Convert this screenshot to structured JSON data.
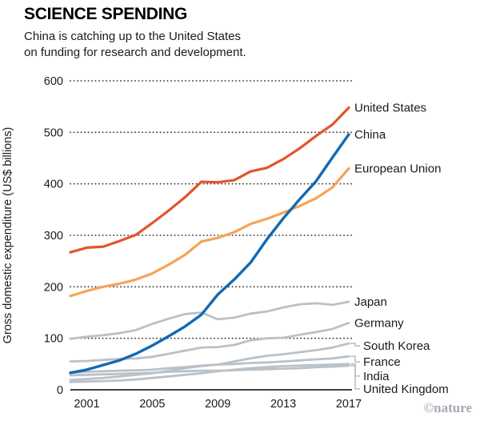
{
  "header": {
    "title": "SCIENCE SPENDING",
    "subtitle_line1": "China is catching up to the United States",
    "subtitle_line2": "on funding for research and development."
  },
  "footer": {
    "credit": "©nature"
  },
  "colors": {
    "united_states": "#e4542b",
    "china": "#1269b2",
    "european_union": "#f5a455",
    "gray_series": "#b9c1c9",
    "axis": "#000000",
    "grid": "#333333",
    "text": "#1a1a1a",
    "credit": "#a3abb2"
  },
  "chart_data": {
    "type": "line",
    "title": "SCIENCE SPENDING",
    "subtitle": "China is catching up to the United States on funding for research and development.",
    "xlabel": "",
    "ylabel": "Gross domestic expenditure (US$ billions)",
    "ylim": [
      0,
      600
    ],
    "y_ticks": [
      0,
      100,
      200,
      300,
      400,
      500,
      600
    ],
    "x_ticks": [
      2001,
      2005,
      2009,
      2013,
      2017
    ],
    "grid": "horizontal-dotted",
    "legend_position": "right-of-line-ends",
    "x": [
      2000,
      2001,
      2002,
      2003,
      2004,
      2005,
      2006,
      2007,
      2008,
      2009,
      2010,
      2011,
      2012,
      2013,
      2014,
      2015,
      2016,
      2017
    ],
    "series": [
      {
        "name": "United States",
        "color": "#e4542b",
        "width": 3.2,
        "label_dy": 0,
        "values": [
          267,
          276,
          278,
          289,
          301,
          324,
          348,
          374,
          404,
          403,
          407,
          424,
          431,
          448,
          469,
          493,
          515,
          548
        ]
      },
      {
        "name": "China",
        "color": "#1269b2",
        "width": 3.4,
        "label_dy": 0,
        "values": [
          33,
          39,
          48,
          57,
          70,
          86,
          104,
          123,
          146,
          185,
          214,
          247,
          292,
          333,
          370,
          405,
          451,
          496
        ]
      },
      {
        "name": "European Union",
        "color": "#f5a455",
        "width": 3.2,
        "label_dy": 0,
        "values": [
          182,
          192,
          200,
          206,
          214,
          226,
          243,
          262,
          288,
          295,
          306,
          322,
          332,
          344,
          357,
          372,
          393,
          430
        ]
      },
      {
        "name": "Japan",
        "color": "#b9c1c9",
        "width": 2.8,
        "label_dy": 0,
        "values": [
          99,
          103,
          106,
          110,
          116,
          128,
          138,
          147,
          150,
          137,
          140,
          148,
          152,
          160,
          166,
          168,
          165,
          171
        ]
      },
      {
        "name": "Germany",
        "color": "#b9c1c9",
        "width": 2.8,
        "label_dy": 0,
        "values": [
          55,
          56,
          58,
          60,
          61,
          64,
          70,
          76,
          82,
          83,
          87,
          96,
          100,
          101,
          107,
          112,
          118,
          130
        ]
      },
      {
        "name": "South Korea",
        "color": "#b9c1c9",
        "width": 2.8,
        "label_dy": 3,
        "values": [
          19,
          21,
          23,
          26,
          29,
          32,
          37,
          42,
          46,
          49,
          55,
          61,
          66,
          69,
          73,
          77,
          82,
          90
        ]
      },
      {
        "name": "France",
        "color": "#b9c1c9",
        "width": 2.8,
        "label_dy": 7,
        "values": [
          33,
          35,
          36,
          37,
          38,
          39,
          42,
          44,
          47,
          49,
          50,
          52,
          53,
          55,
          57,
          59,
          61,
          65
        ]
      },
      {
        "name": "India",
        "color": "#b9c1c9",
        "width": 2.8,
        "label_dy": 15,
        "values": [
          15,
          16,
          17,
          18,
          20,
          23,
          26,
          29,
          32,
          36,
          39,
          42,
          44,
          46,
          47,
          48,
          49,
          50
        ]
      },
      {
        "name": "United Kingdom",
        "color": "#b9c1c9",
        "width": 2.8,
        "label_dy": 29,
        "values": [
          28,
          29,
          30,
          31,
          32,
          33,
          35,
          36,
          37,
          37,
          38,
          39,
          40,
          41,
          42,
          44,
          45,
          47
        ]
      }
    ]
  }
}
